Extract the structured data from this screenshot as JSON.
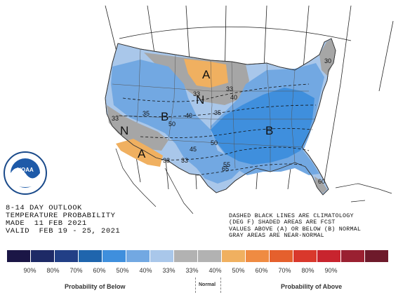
{
  "outlook": {
    "title_line1": "8-14 DAY OUTLOOK",
    "title_line2": "TEMPERATURE PROBABILITY",
    "made_line": "MADE  11 FEB 2021",
    "valid_line": "VALID  FEB 19 - 25, 2021"
  },
  "notes": {
    "line1": "DASHED BLACK LINES ARE CLIMATOLOGY",
    "line2": "(DEG F) SHADED AREAS ARE FCST",
    "line3": "VALUES ABOVE (A) OR BELOW (B) NORMAL",
    "line4": "GRAY AREAS ARE NEAR-NORMAL"
  },
  "logo": {
    "text": "NOAA"
  },
  "map_labels": {
    "category_labels": [
      "A",
      "N",
      "B",
      "N",
      "A",
      "B"
    ],
    "climatology_labels": [
      "33",
      "33",
      "40",
      "35",
      "50",
      "40",
      "33",
      "35",
      "45",
      "50",
      "33",
      "33",
      "55",
      "65",
      "60",
      "30"
    ]
  },
  "colors": {
    "below_light": "#a9c7ea",
    "below_mid": "#72a8e2",
    "below_strong": "#3f8fdd",
    "near_normal": "#a6a6a6",
    "above_light": "#f0b060"
  },
  "legend": {
    "swatches": [
      "#1b1646",
      "#1e2a66",
      "#223f86",
      "#1f65ad",
      "#3f8fdd",
      "#72a8e2",
      "#a9c7ea",
      "#b2b2b2",
      "#b2b2b2",
      "#f0b060",
      "#ef8b42",
      "#e5602d",
      "#d9382c",
      "#c8242e",
      "#9a2031",
      "#6e1a2b"
    ],
    "ticks": [
      "90%",
      "80%",
      "70%",
      "60%",
      "50%",
      "40%",
      "33%",
      "33%",
      "40%",
      "50%",
      "60%",
      "70%",
      "80%",
      "90%"
    ],
    "below_label": "Probability of Below",
    "normal_label": "Normal",
    "above_label": "Probability of Above"
  }
}
